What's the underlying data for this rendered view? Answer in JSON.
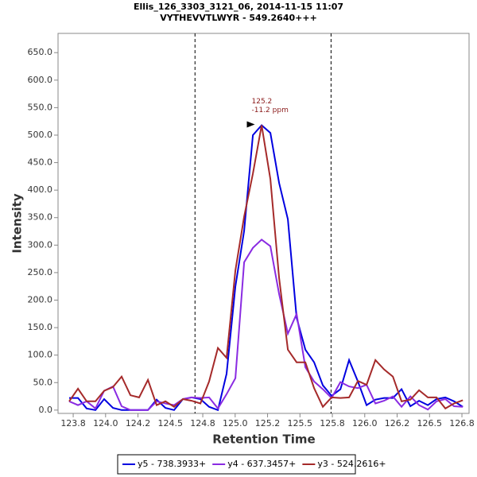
{
  "chart_data": {
    "type": "line",
    "title": "Ellis_126_3303_3121_06, 2014-11-15 11:07",
    "subtitle": "VYTHEVVTLWYR - 549.2640+++",
    "x_label": "Retention Time",
    "y_label": "Intensity",
    "x": [
      123.719,
      123.787,
      123.854,
      123.922,
      123.989,
      124.057,
      124.124,
      124.192,
      124.259,
      124.327,
      124.394,
      124.462,
      124.529,
      124.597,
      124.664,
      124.732,
      124.799,
      124.867,
      124.934,
      125.002,
      125.069,
      125.137,
      125.204,
      125.272,
      125.339,
      125.407,
      125.474,
      125.542,
      125.609,
      125.677,
      125.744,
      125.812,
      125.879,
      125.947,
      126.014,
      126.082,
      126.149,
      126.217,
      126.284,
      126.352,
      126.419,
      126.487,
      126.554,
      126.622,
      126.689,
      126.757
    ],
    "series": [
      {
        "name": "y5 - 738.3933+",
        "color": "#0000e0",
        "values": [
          22,
          22,
          3,
          0,
          20,
          4,
          0,
          0,
          0,
          0,
          19,
          4,
          0,
          20,
          23,
          20,
          6,
          0,
          66,
          225,
          326,
          500,
          518,
          504,
          413,
          347,
          168,
          110,
          87,
          45,
          26,
          38,
          91,
          52,
          9,
          19,
          22,
          22,
          38,
          7,
          17,
          9,
          20,
          23,
          16,
          6
        ]
      },
      {
        "name": "y4 - 637.3457+",
        "color": "#8a2be2",
        "values": [
          16,
          9,
          16,
          3,
          35,
          43,
          7,
          0,
          0,
          0,
          16,
          12,
          9,
          20,
          23,
          22,
          23,
          3,
          29,
          58,
          269,
          295,
          310,
          298,
          211,
          139,
          175,
          78,
          52,
          38,
          22,
          51,
          43,
          40,
          46,
          12,
          17,
          25,
          6,
          25,
          9,
          1,
          16,
          20,
          7,
          6
        ]
      },
      {
        "name": "y3 - 524.2616+",
        "color": "#a52a2a",
        "values": [
          16,
          39,
          16,
          16,
          35,
          42,
          61,
          27,
          23,
          55,
          9,
          16,
          6,
          20,
          17,
          12,
          52,
          113,
          95,
          254,
          352,
          430,
          518,
          420,
          240,
          110,
          87,
          87,
          40,
          6,
          23,
          22,
          23,
          53,
          46,
          91,
          74,
          61,
          16,
          19,
          36,
          23,
          23,
          3,
          12,
          18
        ]
      }
    ],
    "xlim": [
      123.633,
      126.805
    ],
    "ylim": [
      -6,
      685
    ],
    "xticks": [
      {
        "value": 123.75,
        "label": "123.8"
      },
      {
        "value": 124.0,
        "label": "124.0"
      },
      {
        "value": 124.25,
        "label": "124.2"
      },
      {
        "value": 124.5,
        "label": "124.5"
      },
      {
        "value": 124.75,
        "label": "124.8"
      },
      {
        "value": 125.0,
        "label": "125.0"
      },
      {
        "value": 125.25,
        "label": "125.2"
      },
      {
        "value": 125.5,
        "label": "125.5"
      },
      {
        "value": 125.75,
        "label": "125.8"
      },
      {
        "value": 126.0,
        "label": "126.0"
      },
      {
        "value": 126.25,
        "label": "126.2"
      },
      {
        "value": 126.5,
        "label": "126.5"
      },
      {
        "value": 126.75,
        "label": "126.8"
      }
    ],
    "yticks": [
      {
        "value": 0,
        "label": "0.0"
      },
      {
        "value": 50,
        "label": "50.0"
      },
      {
        "value": 100,
        "label": "100.0"
      },
      {
        "value": 150,
        "label": "150.0"
      },
      {
        "value": 200,
        "label": "200.0"
      },
      {
        "value": 250,
        "label": "250.0"
      },
      {
        "value": 300,
        "label": "300.0"
      },
      {
        "value": 350,
        "label": "350.0"
      },
      {
        "value": 400,
        "label": "400.0"
      },
      {
        "value": 450,
        "label": "450.0"
      },
      {
        "value": 500,
        "label": "500.0"
      },
      {
        "value": 550,
        "label": "550.0"
      },
      {
        "value": 600,
        "label": "600.0"
      },
      {
        "value": 650,
        "label": "650.0"
      }
    ],
    "boundaries": [
      124.69,
      125.74
    ],
    "annotation": {
      "lines": [
        "125.2",
        "-11.2 ppm"
      ],
      "x": 125.17,
      "y": 518,
      "color": "#8b1a1a"
    },
    "legend": "bottom"
  }
}
